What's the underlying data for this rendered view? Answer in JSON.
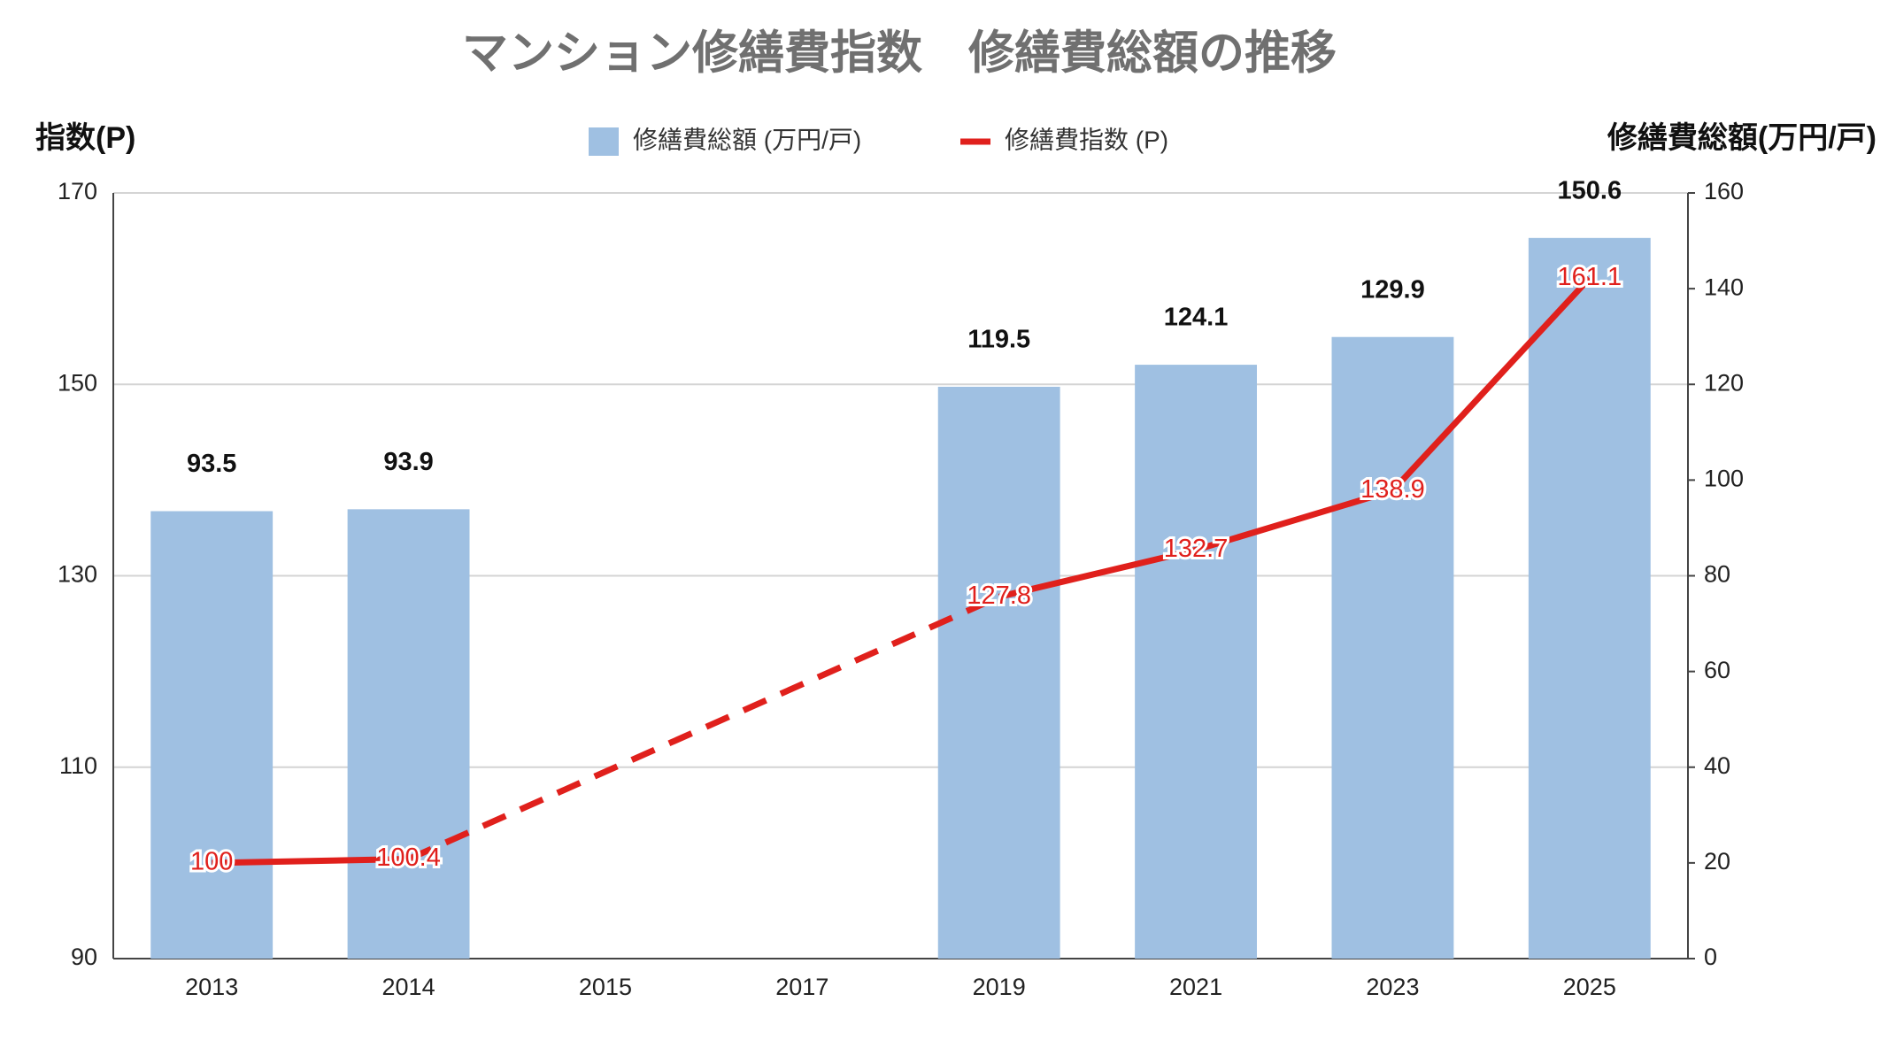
{
  "chart_data": {
    "type": "combo",
    "title": "マンション修繕費指数　修繕費総額の推移",
    "y_label": "指数(P)",
    "y2_label": "修繕費総額(万円/戸)",
    "categories": [
      "2013",
      "2014",
      "2015",
      "2017",
      "2019",
      "2021",
      "2023",
      "2025"
    ],
    "series": [
      {
        "name": "修繕費総額 (万円/戸)",
        "type": "bar",
        "axis": "y2",
        "color": "#9fc0e2",
        "values": [
          93.5,
          93.9,
          null,
          null,
          119.5,
          124.1,
          129.9,
          150.6
        ]
      },
      {
        "name": "修繕費指数 (P)",
        "type": "line",
        "axis": "y",
        "color": "#e0201c",
        "gap_style": "dashed",
        "values": [
          100,
          100.4,
          null,
          null,
          127.8,
          132.7,
          138.9,
          161.1
        ]
      }
    ],
    "ylim": [
      90,
      170
    ],
    "yticks": [
      90,
      110,
      130,
      150,
      170
    ],
    "y2lim": [
      0,
      160
    ],
    "y2ticks": [
      0,
      20,
      40,
      60,
      80,
      100,
      120,
      140,
      160
    ],
    "grid": true,
    "legend": "top"
  }
}
